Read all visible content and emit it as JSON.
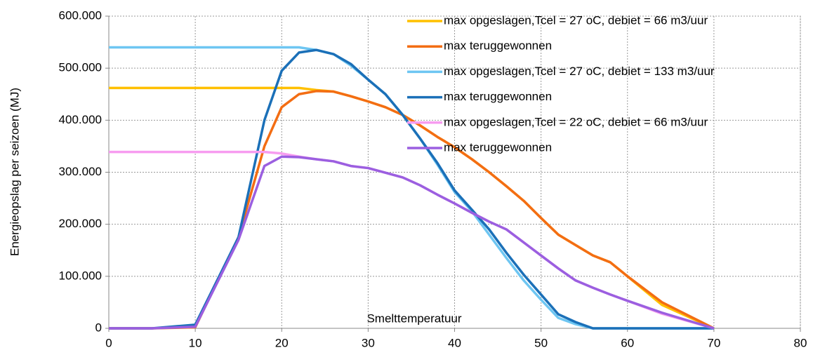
{
  "chart_data": {
    "type": "line",
    "x_label": "Smelttemperatuur",
    "y_label": "Energieopslag per seizoen (MJ)",
    "x": [
      0,
      5,
      10,
      15,
      18,
      20,
      22,
      24,
      26,
      28,
      30,
      32,
      34,
      36,
      38,
      40,
      42,
      44,
      46,
      48,
      50,
      52,
      54,
      56,
      58,
      60,
      64,
      70
    ],
    "series": [
      {
        "name": "max opgeslagen,Tcel = 27 oC, debiet = 66 m3/uur",
        "color": "#ffc000",
        "values": [
          462000,
          462000,
          462000,
          462000,
          462000,
          462000,
          462000,
          458000,
          455000,
          446000,
          436000,
          425000,
          410000,
          390000,
          368000,
          348000,
          325000,
          300000,
          273000,
          245000,
          212000,
          180000,
          160000,
          140000,
          127000,
          100000,
          45000,
          0
        ]
      },
      {
        "name": "max teruggewonnen",
        "color": "#f36d13",
        "values": [
          0,
          0,
          2000,
          175000,
          350000,
          425000,
          450000,
          456000,
          455000,
          446000,
          436000,
          425000,
          410000,
          390000,
          368000,
          348000,
          325000,
          300000,
          273000,
          245000,
          212000,
          180000,
          160000,
          140000,
          127000,
          100000,
          50000,
          0
        ]
      },
      {
        "name": "max opgeslagen,Tcel = 27 oC, debiet = 133 m3/uur",
        "color": "#6ec6f2",
        "values": [
          540000,
          540000,
          540000,
          540000,
          540000,
          540000,
          540000,
          535000,
          527000,
          505000,
          478000,
          450000,
          410000,
          365000,
          315000,
          262000,
          225000,
          180000,
          135000,
          92000,
          55000,
          20000,
          8000,
          0,
          0,
          0,
          0,
          0
        ]
      },
      {
        "name": "max teruggewonnen",
        "color": "#1b70b8",
        "values": [
          0,
          0,
          7000,
          175000,
          400000,
          495000,
          530000,
          535000,
          527000,
          508000,
          478000,
          450000,
          410000,
          365000,
          318000,
          265000,
          228000,
          190000,
          145000,
          103000,
          65000,
          27000,
          12000,
          0,
          0,
          0,
          0,
          0
        ]
      },
      {
        "name": "max opgeslagen,Tcel = 22 oC, debiet = 66 m3/uur",
        "color": "#f79cf0",
        "values": [
          339000,
          339000,
          339000,
          339000,
          339000,
          336000,
          330000,
          325000,
          321000,
          312000,
          308000,
          299000,
          290000,
          275000,
          257000,
          240000,
          222000,
          205000,
          190000,
          165000,
          140000,
          115000,
          92000,
          78000,
          65000,
          53000,
          28000,
          0
        ]
      },
      {
        "name": "max teruggewonnen",
        "color": "#9b5fe0",
        "values": [
          0,
          0,
          3000,
          170000,
          312000,
          330000,
          329000,
          325000,
          321000,
          312000,
          308000,
          299000,
          290000,
          275000,
          257000,
          240000,
          222000,
          205000,
          190000,
          165000,
          140000,
          115000,
          92000,
          78000,
          65000,
          53000,
          30000,
          0
        ]
      }
    ],
    "xlim": [
      0,
      80
    ],
    "xticks": [
      0,
      10,
      20,
      30,
      40,
      50,
      60,
      70,
      80
    ],
    "ylim": [
      0,
      600000
    ],
    "yticks": [
      0,
      {
        "value": 100000,
        "label": "100.000"
      },
      {
        "value": 200000,
        "label": "200.000"
      },
      {
        "value": 300000,
        "label": "300.000"
      },
      {
        "value": 400000,
        "label": "400.000"
      },
      {
        "value": 500000,
        "label": "500.000"
      },
      {
        "value": 600000,
        "label": "600.000"
      }
    ],
    "grid": true,
    "legend": "top-right"
  }
}
